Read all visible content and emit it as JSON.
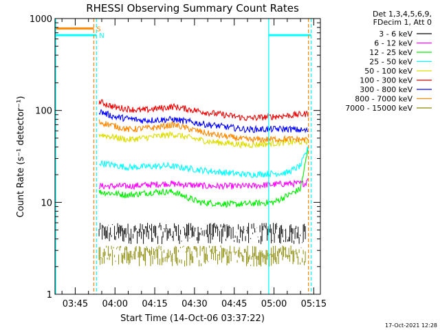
{
  "chart_data": {
    "type": "line",
    "title": "RHESSI Observing Summary Count Rates",
    "xlabel": "Start Time (14-Oct-06 03:37:22)",
    "ylabel": "Count Rate (s⁻¹ detector⁻¹)",
    "y_scale": "log",
    "ylim": [
      1,
      1000
    ],
    "y_ticks": [
      {
        "value": 1,
        "label": "1"
      },
      {
        "value": 10,
        "label": "10"
      },
      {
        "value": 100,
        "label": "100"
      },
      {
        "value": 1000,
        "label": "1000"
      }
    ],
    "xlim": [
      "03:37:22",
      "05:17:30"
    ],
    "x_ticks": [
      "03:45",
      "04:00",
      "04:15",
      "04:30",
      "04:45",
      "05:00",
      "05:15"
    ],
    "legend_header": [
      "Det 1,3,4,5,6,9,",
      "FDecim 1, Att 0"
    ],
    "legend_position": "outside-right",
    "timestamp": "17-Oct-2021 12:28",
    "series": [
      {
        "name": "3 - 6 keV",
        "color": "#000000",
        "style": "noisy-band",
        "low": 3.5,
        "high": 6,
        "x": [
          "03:54",
          "04:10",
          "04:30",
          "04:50",
          "05:12"
        ],
        "y": [
          4.5,
          4.5,
          4.5,
          4.5,
          4.5
        ]
      },
      {
        "name": "6 - 12 keV",
        "color": "#ff00ff",
        "x": [
          "03:54",
          "04:05",
          "04:20",
          "04:35",
          "04:50",
          "05:05",
          "05:12",
          "05:13"
        ],
        "y": [
          15,
          15,
          16,
          15,
          15,
          16,
          16,
          20
        ]
      },
      {
        "name": "12 - 25 keV",
        "color": "#00ee00",
        "x": [
          "03:54",
          "04:05",
          "04:15",
          "04:22",
          "04:32",
          "04:45",
          "05:00",
          "05:10",
          "05:13"
        ],
        "y": [
          13,
          12,
          13,
          13,
          10,
          9.5,
          10,
          14,
          40
        ]
      },
      {
        "name": "25 - 50 keV",
        "color": "#00ffff",
        "x": [
          "03:54",
          "04:05",
          "04:20",
          "04:35",
          "04:50",
          "05:05",
          "05:10",
          "05:13"
        ],
        "y": [
          27,
          24,
          25,
          22,
          20,
          21,
          25,
          40
        ]
      },
      {
        "name": "50 - 100 keV",
        "color": "#dddd00",
        "x": [
          "03:54",
          "04:05",
          "04:15",
          "04:22",
          "04:35",
          "04:50",
          "05:05",
          "05:13"
        ],
        "y": [
          55,
          48,
          52,
          55,
          46,
          42,
          45,
          46
        ]
      },
      {
        "name": "100 - 300 keV",
        "color": "#ee0000",
        "x": [
          "03:54",
          "04:00",
          "04:10",
          "04:22",
          "04:35",
          "04:50",
          "05:05",
          "05:13"
        ],
        "y": [
          125,
          108,
          100,
          110,
          95,
          82,
          88,
          92
        ]
      },
      {
        "name": "300 - 800 keV",
        "color": "#0000ff",
        "x": [
          "03:54",
          "04:00",
          "04:10",
          "04:22",
          "04:35",
          "04:50",
          "05:05",
          "05:13"
        ],
        "y": [
          98,
          85,
          78,
          80,
          70,
          62,
          63,
          60
        ]
      },
      {
        "name": "800 - 7000 keV",
        "color": "#ff8800",
        "x": [
          "03:54",
          "04:05",
          "04:15",
          "04:22",
          "04:35",
          "04:50",
          "05:05",
          "05:13"
        ],
        "y": [
          75,
          62,
          65,
          70,
          56,
          48,
          49,
          48
        ]
      },
      {
        "name": "7000 - 15000 keV",
        "color": "#888800",
        "style": "noisy-band",
        "low": 2,
        "high": 3.4,
        "x": [
          "03:54",
          "04:10",
          "04:30",
          "04:50",
          "05:12"
        ],
        "y": [
          2.7,
          2.7,
          2.7,
          2.7,
          2.7
        ]
      }
    ],
    "flags": [
      {
        "label": "S",
        "color": "#ff8800",
        "value": 780,
        "start": "03:37:22",
        "end": "03:52"
      },
      {
        "label": "N",
        "color": "#00ffff",
        "value": 660,
        "start": "03:37:22",
        "end": "03:53",
        "segments": [
          {
            "start": "04:58",
            "end": "05:14"
          }
        ]
      }
    ],
    "vertical_markers": [
      {
        "time": "03:37:22",
        "color": "#00ffff",
        "style": "solid"
      },
      {
        "time": "03:52",
        "color": "#ff8800",
        "style": "dashed"
      },
      {
        "time": "03:53",
        "color": "#00ffff",
        "style": "dashed"
      },
      {
        "time": "04:58",
        "color": "#00ffff",
        "style": "solid"
      },
      {
        "time": "05:13",
        "color": "#ff8800",
        "style": "dashed"
      },
      {
        "time": "05:14",
        "color": "#00ffff",
        "style": "dashed"
      }
    ]
  }
}
